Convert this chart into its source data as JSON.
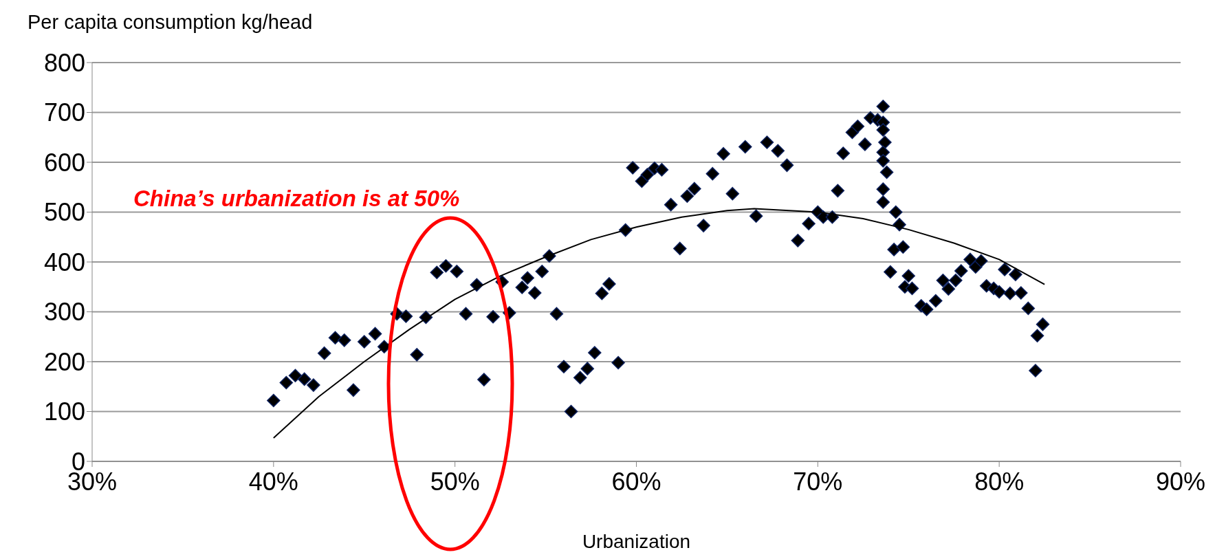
{
  "chart_data": {
    "type": "scatter",
    "ylabel": "Per capita consumption kg/head",
    "xlabel": "Urbanization",
    "annotations": [
      "China’s urbanization is at 50%"
    ],
    "xlim": [
      30,
      90
    ],
    "xticks": [
      {
        "value": 30,
        "label": "30%"
      },
      {
        "value": 40,
        "label": "40%"
      },
      {
        "value": 50,
        "label": "50%"
      },
      {
        "value": 60,
        "label": "60%"
      },
      {
        "value": 70,
        "label": "70%"
      },
      {
        "value": 80,
        "label": "80%"
      },
      {
        "value": 90,
        "label": "90%"
      }
    ],
    "ylim": [
      0,
      800
    ],
    "yticks": [
      0,
      100,
      200,
      300,
      400,
      500,
      600,
      700,
      800
    ],
    "grid": "y",
    "marker": "diamond",
    "series": [
      {
        "type": "scatter",
        "color": "#000000",
        "x": [
          40.0,
          40.7,
          41.2,
          41.7,
          42.2,
          42.8,
          43.4,
          43.9,
          44.4,
          45.0,
          45.6,
          46.1,
          46.8,
          47.3,
          47.9,
          48.4,
          49.0,
          49.5,
          50.1,
          50.6,
          51.2,
          51.6,
          52.1,
          52.6,
          53.0,
          53.7,
          54.0,
          54.4,
          54.8,
          55.2,
          55.6,
          56.0,
          56.4,
          56.9,
          57.3,
          57.7,
          58.1,
          58.5,
          59.0,
          59.4,
          59.8,
          60.3,
          60.6,
          61.0,
          61.4,
          61.9,
          62.4,
          62.8,
          63.2,
          63.7,
          64.2,
          64.8,
          65.3,
          66.0,
          66.6,
          67.2,
          67.8,
          68.3,
          68.9,
          69.5,
          70.0,
          70.3,
          70.8,
          71.1,
          71.4,
          71.9,
          72.2,
          72.6,
          72.9,
          73.3,
          73.6,
          73.6,
          73.6,
          73.7,
          73.6,
          73.6,
          73.8,
          73.6,
          73.6,
          74.3,
          74.5,
          74.0,
          74.2,
          74.7,
          75.0,
          74.8,
          75.2,
          75.7,
          76.0,
          76.5,
          76.9,
          77.2,
          77.6,
          77.9,
          78.4,
          78.7,
          79.0,
          79.3,
          79.7,
          80.0,
          80.3,
          80.6,
          80.9,
          81.2,
          81.6,
          82.0,
          82.1,
          82.4
        ],
        "values": [
          122,
          158,
          172,
          165,
          153,
          217,
          248,
          243,
          143,
          240,
          256,
          230,
          296,
          291,
          214,
          289,
          379,
          392,
          381,
          296,
          354,
          164,
          290,
          360,
          298,
          349,
          368,
          338,
          381,
          412,
          296,
          190,
          100,
          168,
          186,
          218,
          337,
          356,
          198,
          464,
          589,
          562,
          575,
          588,
          585,
          515,
          427,
          532,
          547,
          473,
          577,
          617,
          537,
          631,
          492,
          640,
          623,
          594,
          443,
          477,
          500,
          490,
          490,
          543,
          618,
          660,
          672,
          636,
          689,
          685,
          712,
          680,
          665,
          640,
          620,
          603,
          580,
          546,
          520,
          500,
          475,
          380,
          425,
          430,
          372,
          350,
          347,
          312,
          305,
          322,
          363,
          346,
          363,
          382,
          405,
          390,
          402,
          352,
          347,
          340,
          385,
          337,
          375,
          338,
          307,
          182,
          252,
          275
        ]
      },
      {
        "type": "line",
        "color": "#000000",
        "marker": "none",
        "x": [
          40,
          42.5,
          45,
          47.5,
          50,
          52.5,
          55,
          57.5,
          60,
          62.5,
          65,
          66.5,
          70,
          72.5,
          75,
          77.5,
          80,
          82.5
        ],
        "values": [
          47,
          130,
          200,
          265,
          325,
          372,
          410,
          445,
          470,
          490,
          503,
          507,
          500,
          487,
          465,
          438,
          405,
          355
        ]
      }
    ]
  }
}
